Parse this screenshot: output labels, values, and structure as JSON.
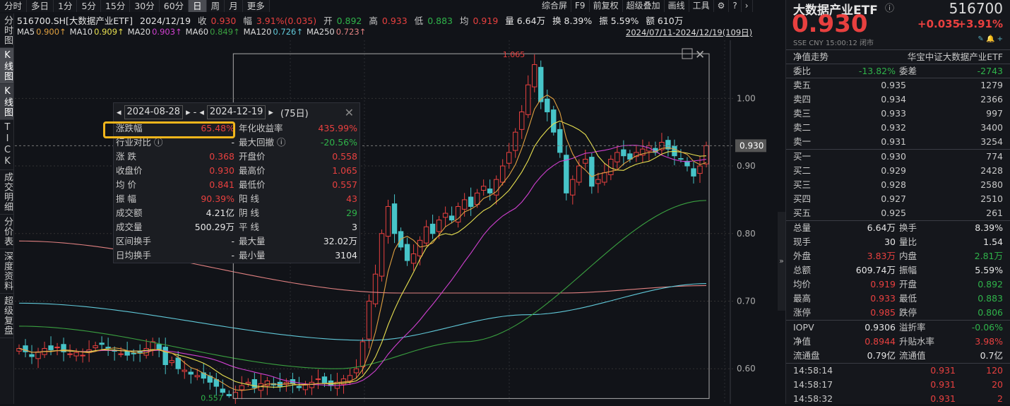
{
  "tabs": [
    "分时",
    "多日",
    "1分",
    "5分",
    "15分",
    "30分",
    "60分",
    "日",
    "周",
    "月",
    "更多"
  ],
  "active_tab": "日",
  "toolbar": [
    "综合屏",
    "F9",
    "前复权",
    "超级叠加",
    "画线",
    "工具",
    "⚙",
    "?",
    "›"
  ],
  "info": {
    "code": "516700.SH[大数据产业ETF]",
    "date": "2024/12/19",
    "close_l": "收",
    "close": "0.930",
    "chg_l": "幅",
    "chg": "3.91%(0.035)",
    "open_l": "开",
    "open": "0.892",
    "high_l": "高",
    "high": "0.933",
    "low_l": "低",
    "low": "0.883",
    "avg_l": "均",
    "avg": "0.919",
    "vol": "量 6.64万",
    "turn": "换 8.39%",
    "amp": "振 5.59%",
    "amt": "额 610万"
  },
  "ma": [
    {
      "label": "MA5",
      "value": "0.900↑",
      "color": "#e0a040"
    },
    {
      "label": "MA10",
      "value": "0.909↑",
      "color": "#e8e050"
    },
    {
      "label": "MA20",
      "value": "0.903↑",
      "color": "#d040d0"
    },
    {
      "label": "MA60",
      "value": "0.849↑",
      "color": "#3aa040"
    },
    {
      "label": "MA120",
      "value": "0.726↑",
      "color": "#60c8d8"
    },
    {
      "label": "MA250",
      "value": "0.723↑",
      "color": "#e08080"
    }
  ],
  "range": "2024/07/11-2024/12/19(109日)",
  "sidebar": [
    "分时图",
    "K线图",
    "TICK",
    "成交明细",
    "分价表",
    "深度资料",
    "超级复盘"
  ],
  "active_side": "K线图",
  "chart_data": {
    "type": "candlestick",
    "y_ticks": [
      1.0,
      0.9,
      0.8,
      0.7,
      0.6
    ],
    "ylim": [
      0.548,
      1.086
    ],
    "last_price_label": "0.930",
    "max_label": "1.065",
    "min_label": "0.557",
    "closes": [
      0.63,
      0.625,
      0.618,
      0.625,
      0.63,
      0.628,
      0.632,
      0.625,
      0.622,
      0.624,
      0.62,
      0.628,
      0.634,
      0.636,
      0.63,
      0.626,
      0.622,
      0.62,
      0.622,
      0.624,
      0.63,
      0.64,
      0.628,
      0.606,
      0.612,
      0.6,
      0.598,
      0.592,
      0.59,
      0.586,
      0.58,
      0.574,
      0.565,
      0.56,
      0.565,
      0.575,
      0.58,
      0.572,
      0.578,
      0.582,
      0.576,
      0.574,
      0.58,
      0.578,
      0.572,
      0.576,
      0.58,
      0.585,
      0.578,
      0.575,
      0.58,
      0.585,
      0.59,
      0.6,
      0.64,
      0.7,
      0.74,
      0.8,
      0.84,
      0.8,
      0.78,
      0.76,
      0.77,
      0.79,
      0.81,
      0.8,
      0.82,
      0.83,
      0.82,
      0.84,
      0.85,
      0.84,
      0.86,
      0.87,
      0.86,
      0.88,
      0.9,
      0.92,
      0.95,
      0.98,
      1.02,
      1.05,
      0.995,
      0.98,
      0.95,
      0.92,
      0.86,
      0.88,
      0.9,
      0.91,
      0.87,
      0.88,
      0.89,
      0.91,
      0.92,
      0.915,
      0.91,
      0.92,
      0.925,
      0.93,
      0.92,
      0.935,
      0.925,
      0.915,
      0.91,
      0.9,
      0.885,
      0.9,
      0.93
    ],
    "ma60": [
      [
        0,
        0.663
      ],
      [
        50,
        0.6
      ],
      [
        70,
        0.64
      ],
      [
        108,
        0.849
      ]
    ],
    "ma120": [
      [
        0,
        0.697
      ],
      [
        55,
        0.642
      ],
      [
        80,
        0.68
      ],
      [
        108,
        0.726
      ]
    ],
    "ma250": [
      [
        0,
        0.789
      ],
      [
        60,
        0.712
      ],
      [
        85,
        0.712
      ],
      [
        108,
        0.723
      ]
    ]
  },
  "popup": {
    "start": "2024-08-28",
    "end": "2024-12-19",
    "days": "(75日)",
    "rows": [
      [
        "涨跌幅",
        "65.48%",
        "red",
        "年化收益率",
        "435.99%",
        "red"
      ],
      [
        "行业对比 ⓘ",
        "-",
        "white",
        "最大回撤 ⓘ",
        "-20.56%",
        "green"
      ],
      [
        "涨  跌",
        "0.368",
        "red",
        "开盘价",
        "0.558",
        "red"
      ],
      [
        "收盘价",
        "0.930",
        "red",
        "最高价",
        "1.065",
        "red"
      ],
      [
        "均  价",
        "0.841",
        "red",
        "最低价",
        "0.557",
        "red"
      ],
      [
        "振  幅",
        "90.39%",
        "red",
        "阳  线",
        "43",
        "red"
      ],
      [
        "成交额",
        "4.21亿",
        "white",
        "阴  线",
        "29",
        "green"
      ],
      [
        "成交量",
        "500.29万",
        "white",
        "平  线",
        "3",
        "white"
      ],
      [
        "区间换手",
        "-",
        "white",
        "最大量",
        "32.02万",
        "white"
      ],
      [
        "日均换手",
        "-",
        "white",
        "最小量",
        "3104",
        "white"
      ]
    ]
  },
  "right": {
    "title": "大数据产业ETF",
    "code": "516700",
    "price": "0.930",
    "change": "+0.035",
    "pct": "+3.91%",
    "status": "SSE  CNY  15:00:12  闭市",
    "nav_label": "净值走势",
    "fund_name": "华宝中证大数据产业ETF",
    "wb": [
      "委比",
      "-13.82%",
      "委差",
      "-2743"
    ],
    "sell": [
      [
        "卖五",
        "0.935",
        "1279"
      ],
      [
        "卖四",
        "0.934",
        "2366"
      ],
      [
        "卖三",
        "0.933",
        "997"
      ],
      [
        "卖二",
        "0.932",
        "3400"
      ],
      [
        "卖一",
        "0.931",
        "3254"
      ]
    ],
    "buy": [
      [
        "买一",
        "0.930",
        "774"
      ],
      [
        "买二",
        "0.929",
        "2428"
      ],
      [
        "买三",
        "0.928",
        "2580"
      ],
      [
        "买四",
        "0.927",
        "2510"
      ],
      [
        "买五",
        "0.925",
        "261"
      ]
    ],
    "stats": [
      [
        "总量",
        "6.64万",
        "white",
        "换手",
        "8.39%",
        "white"
      ],
      [
        "现手",
        "30",
        "white",
        "量比",
        "1.54",
        "white"
      ],
      [
        "外盘",
        "3.83万",
        "red",
        "内盘",
        "2.81万",
        "green"
      ],
      [
        "总额",
        "609.74万",
        "white",
        "振幅",
        "5.59%",
        "white"
      ],
      [
        "均价",
        "0.919",
        "red",
        "开盘",
        "0.892",
        "green"
      ],
      [
        "最高",
        "0.933",
        "red",
        "最低",
        "0.883",
        "green"
      ],
      [
        "涨停",
        "0.985",
        "red",
        "跌停",
        "0.806",
        "green"
      ]
    ],
    "etf": [
      [
        "IOPV",
        "0.9306",
        "white",
        "溢折率",
        "-0.06%",
        "green"
      ],
      [
        "净值",
        "0.8944",
        "red",
        "升贴水率",
        "3.98%",
        "red"
      ],
      [
        "流通盘",
        "0.79亿",
        "white",
        "流通值",
        "0.7亿",
        "white"
      ]
    ],
    "ticks": [
      [
        "14:58:14",
        "0.931",
        "120"
      ],
      [
        "14:58:17",
        "0.931",
        "20"
      ],
      [
        "14:58:32",
        "0.931",
        "2"
      ]
    ]
  }
}
